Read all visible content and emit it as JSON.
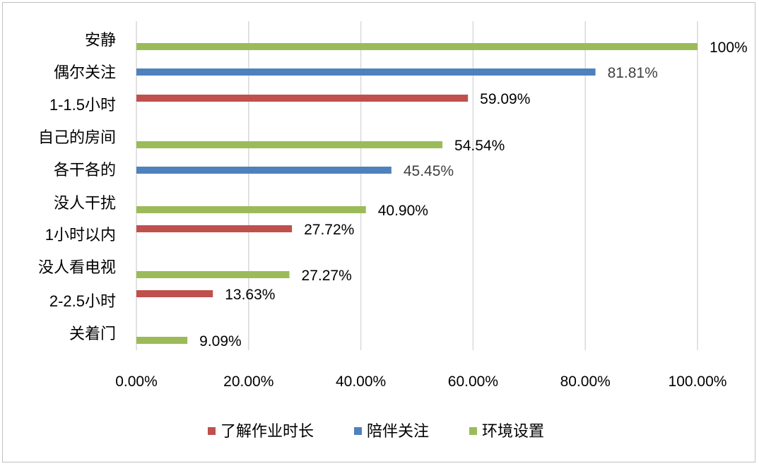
{
  "chart_data": {
    "type": "bar",
    "orientation": "horizontal",
    "title": "",
    "xlabel": "",
    "ylabel": "",
    "xlim": [
      0,
      100
    ],
    "x_ticks": [
      "0.00%",
      "20.00%",
      "40.00%",
      "60.00%",
      "80.00%",
      "100.00%"
    ],
    "grid": "vertical",
    "legend_position": "bottom",
    "series": [
      {
        "name": "了解作业时长",
        "color": "#c0504d"
      },
      {
        "name": "陪伴关注",
        "color": "#4f81bd"
      },
      {
        "name": "环境设置",
        "color": "#9bbb59"
      }
    ],
    "bars": [
      {
        "category": "安静",
        "series": "环境设置",
        "value": 100,
        "label": "100%"
      },
      {
        "category": "偶尔关注",
        "series": "陪伴关注",
        "value": 81.81,
        "label": "81.81%"
      },
      {
        "category": "1-1.5小时",
        "series": "了解作业时长",
        "value": 59.09,
        "label": "59.09%"
      },
      {
        "category": "自己的房间",
        "series": "环境设置",
        "value": 54.54,
        "label": "54.54%"
      },
      {
        "category": "各干各的",
        "series": "陪伴关注",
        "value": 45.45,
        "label": "45.45%"
      },
      {
        "category": "没人干扰",
        "series": "环境设置",
        "value": 40.9,
        "label": "40.90%"
      },
      {
        "category": "1小时以内",
        "series": "了解作业时长",
        "value": 27.72,
        "label": "27.72%"
      },
      {
        "category": "没人看电视",
        "series": "环境设置",
        "value": 27.27,
        "label": "27.27%"
      },
      {
        "category": "2-2.5小时",
        "series": "了解作业时长",
        "value": 13.63,
        "label": "13.63%"
      },
      {
        "category": "关着门",
        "series": "环境设置",
        "value": 9.09,
        "label": "9.09%"
      }
    ]
  }
}
